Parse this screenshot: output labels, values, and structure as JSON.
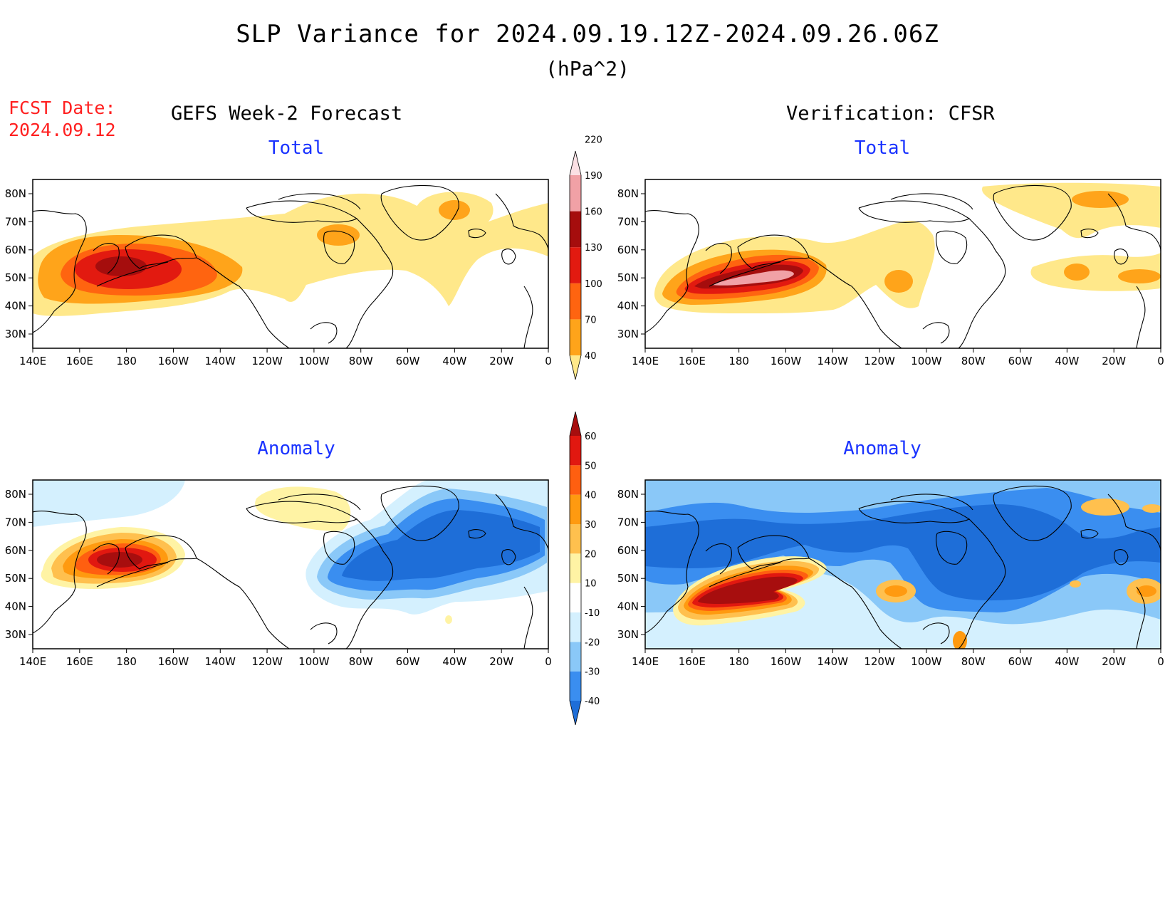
{
  "title": "SLP Variance for 2024.09.19.12Z-2024.09.26.06Z",
  "units": "(hPa^2)",
  "forecast_date": {
    "label": "FCST Date:",
    "value": "2024.09.12"
  },
  "columns": {
    "left": "GEFS Week-2 Forecast",
    "right": "Verification: CFSR"
  },
  "panels": {
    "forecast_total": "Total",
    "verification_total": "Total",
    "forecast_anomaly": "Anomaly",
    "verification_anomaly": "Anomaly"
  },
  "lat_labels": [
    "80N",
    "70N",
    "60N",
    "50N",
    "40N",
    "30N"
  ],
  "lon_labels": [
    "140E",
    "160E",
    "180",
    "160W",
    "140W",
    "120W",
    "100W",
    "80W",
    "60W",
    "40W",
    "20W",
    "0"
  ],
  "total_colorbar": {
    "labels": [
      "40",
      "70",
      "100",
      "130",
      "160",
      "190",
      "220"
    ],
    "colors": [
      "#ffe88a",
      "#ffa41a",
      "#ff6410",
      "#e21a10",
      "#a50d0d",
      "#f1a1a6",
      "#fbe0e4"
    ]
  },
  "anomaly_colorbar": {
    "labels": [
      "-40",
      "-30",
      "-20",
      "-10",
      "10",
      "20",
      "30",
      "40",
      "50",
      "60"
    ],
    "colors": [
      "#1e6ed8",
      "#3a8ef0",
      "#8ac8f8",
      "#d4f0fe",
      "#ffffff",
      "#fff3a4",
      "#ffc04e",
      "#ff9a10",
      "#ff5f10",
      "#e11810",
      "#a70e0e"
    ]
  },
  "colors": {
    "title_blue": "#1a33ff",
    "fcst_red": "#ff2020"
  }
}
